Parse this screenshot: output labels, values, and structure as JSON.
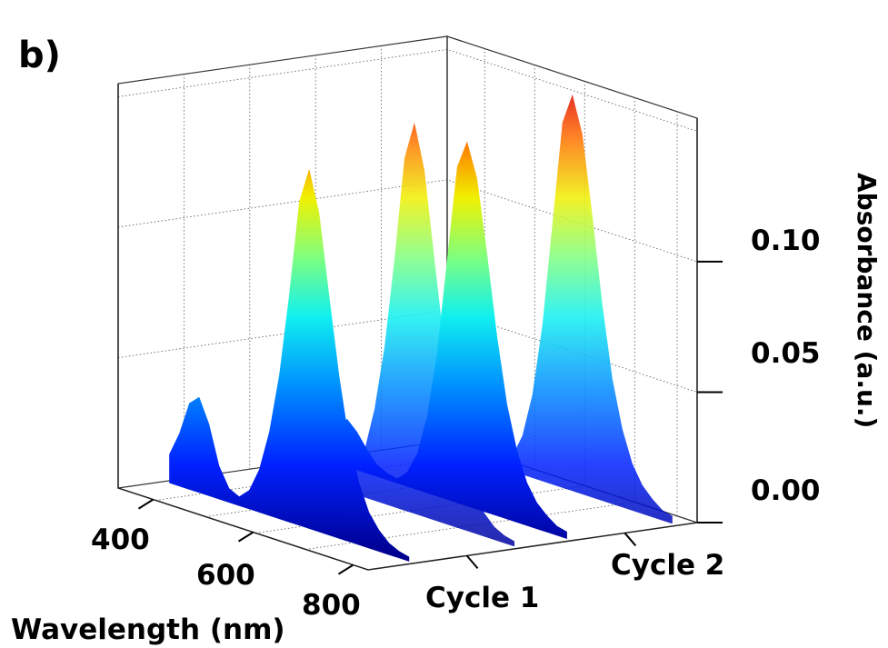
{
  "panel_label": "b)",
  "chart_data": {
    "type": "surface3d",
    "colormap": "jet",
    "grid": true,
    "x_axis": {
      "label": "Wavelength (nm)",
      "ticks": [
        400,
        600,
        800
      ],
      "range": [
        330,
        830
      ]
    },
    "y_axis": {
      "label": "",
      "categories": [
        "Cycle 1",
        "Cycle 2"
      ]
    },
    "z_axis": {
      "label": "Absorbance (a.u.)",
      "ticks": [
        "0.00",
        "0.05",
        "0.10"
      ],
      "range": [
        0.0,
        0.155
      ]
    },
    "series": [
      {
        "name": "Cycle 1",
        "x": [
          340,
          360,
          380,
          400,
          420,
          440,
          460,
          480,
          500,
          520,
          540,
          560,
          580,
          600,
          620,
          640,
          660,
          680,
          700,
          720,
          740,
          760,
          780,
          800,
          820
        ],
        "absorbance": [
          0.012,
          0.022,
          0.036,
          0.04,
          0.03,
          0.014,
          0.006,
          0.004,
          0.008,
          0.018,
          0.035,
          0.06,
          0.095,
          0.135,
          0.15,
          0.133,
          0.1,
          0.068,
          0.042,
          0.026,
          0.015,
          0.009,
          0.005,
          0.003,
          0.002
        ]
      },
      {
        "name": "Cycle 2",
        "x": [
          340,
          360,
          380,
          400,
          420,
          440,
          460,
          480,
          500,
          520,
          540,
          560,
          580,
          600,
          620,
          640,
          660,
          680,
          700,
          720,
          740,
          760,
          780,
          800,
          820
        ],
        "absorbance": [
          0.01,
          0.015,
          0.02,
          0.016,
          0.01,
          0.005,
          0.003,
          0.002,
          0.006,
          0.015,
          0.032,
          0.06,
          0.1,
          0.14,
          0.152,
          0.138,
          0.108,
          0.075,
          0.048,
          0.03,
          0.018,
          0.011,
          0.007,
          0.004,
          0.003
        ]
      }
    ]
  }
}
